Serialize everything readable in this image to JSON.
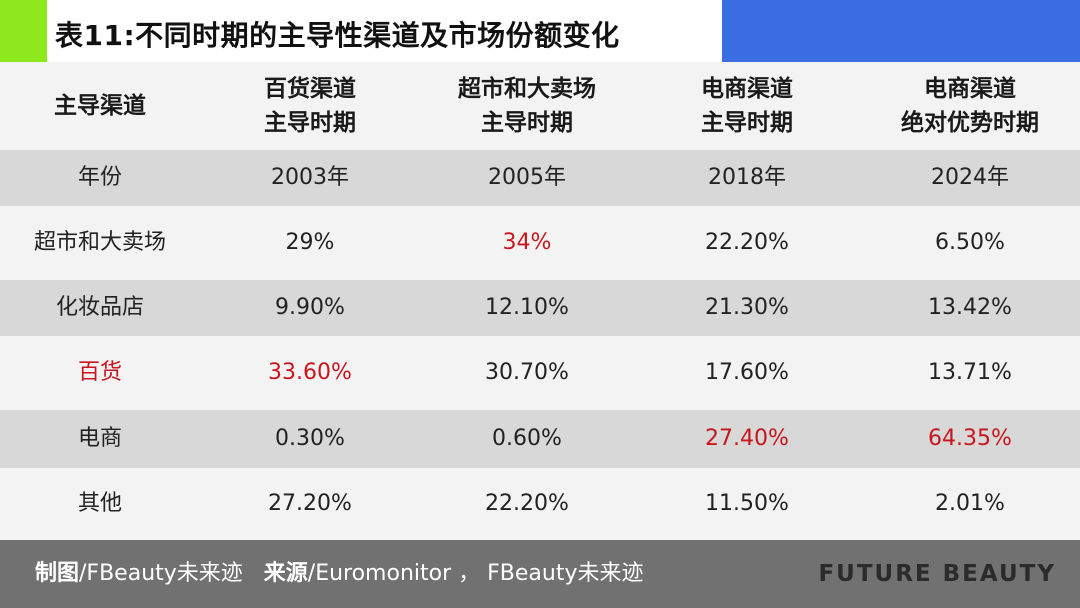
{
  "title": "表11:不同时期的主导性渠道及市场份额变化",
  "colors": {
    "accent_green": "#8de81e",
    "accent_blue": "#3b6de3",
    "highlight_red": "#c8161d",
    "stripe_gray": "#d8d8d8",
    "footer_gray": "#717171"
  },
  "table": {
    "header": {
      "row_label": "主导渠道",
      "columns": [
        {
          "line1": "百货渠道",
          "line2": "主导时期"
        },
        {
          "line1": "超市和大卖场",
          "line2": "主导时期"
        },
        {
          "line1": "电商渠道",
          "line2": "主导时期"
        },
        {
          "line1": "电商渠道",
          "line2": "绝对优势时期"
        }
      ]
    },
    "year_row": {
      "label": "年份",
      "values": [
        "2003年",
        "2005年",
        "2018年",
        "2024年"
      ]
    },
    "rows": [
      {
        "label": "超市和大卖场",
        "values": [
          "29%",
          "34%",
          "22.20%",
          "6.50%"
        ]
      },
      {
        "label": "化妆品店",
        "values": [
          "9.90%",
          "12.10%",
          "21.30%",
          "13.42%"
        ]
      },
      {
        "label": "百货",
        "values": [
          "33.60%",
          "30.70%",
          "17.60%",
          "13.71%"
        ]
      },
      {
        "label": "电商",
        "values": [
          "0.30%",
          "0.60%",
          "27.40%",
          "64.35%"
        ]
      },
      {
        "label": "其他",
        "values": [
          "27.20%",
          "22.20%",
          "11.50%",
          "2.01%"
        ]
      }
    ]
  },
  "footer": {
    "made_by_label": "制图",
    "made_by_value": "/FBeauty未来迹",
    "source_label": "来源",
    "source_value": "/Euromonitor ， FBeauty未来迹",
    "brand": "FUTURE BEAUTY"
  }
}
